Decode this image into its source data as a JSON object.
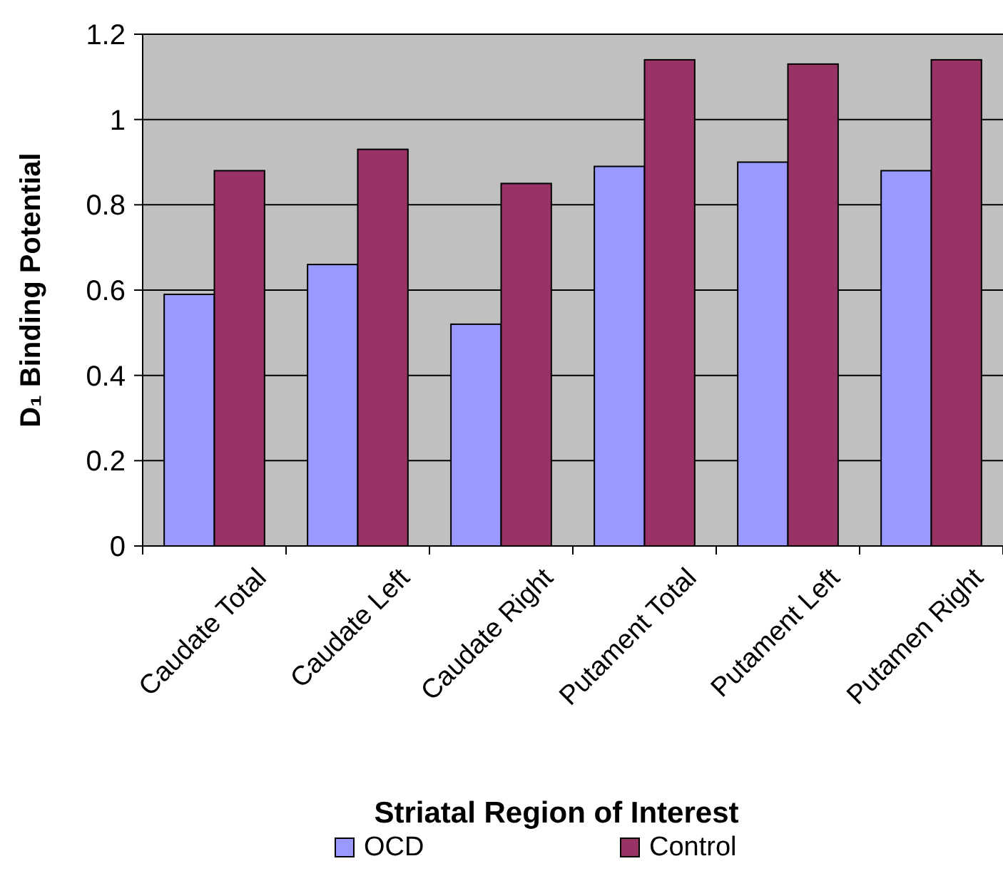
{
  "chart_data": {
    "type": "bar",
    "xlabel": "Striatal Region of Interest",
    "ylabel": "D₁ Binding Potential",
    "categories": [
      "Caudate Total",
      "Caudate Left",
      "Caudate Right",
      "Putament Total",
      "Putament  Left",
      "Putamen Right"
    ],
    "series": [
      {
        "name": "OCD",
        "color": "#9999ff",
        "values": [
          0.59,
          0.66,
          0.52,
          0.89,
          0.9,
          0.88
        ]
      },
      {
        "name": "Control",
        "color": "#993366",
        "values": [
          0.88,
          0.93,
          0.85,
          1.14,
          1.13,
          1.14
        ]
      }
    ],
    "ylim": [
      0,
      1.2
    ],
    "yticks": [
      0,
      0.2,
      0.4,
      0.6,
      0.8,
      1,
      1.2
    ],
    "grid": "y",
    "legend": "bottom"
  }
}
